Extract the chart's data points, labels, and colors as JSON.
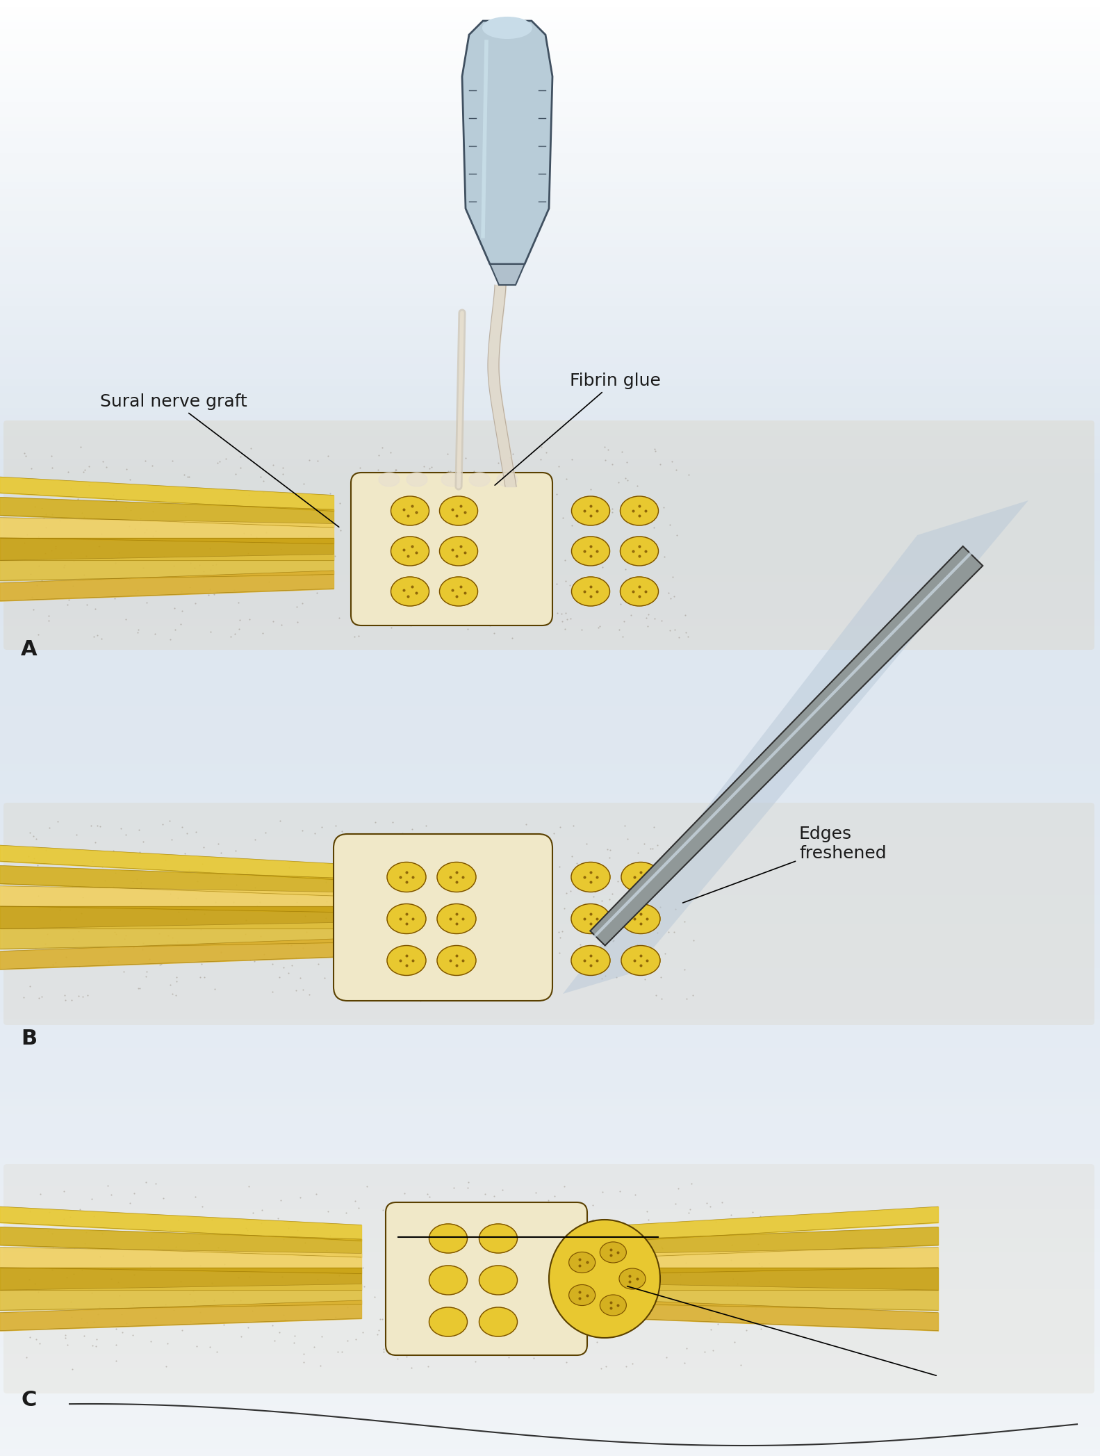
{
  "background_color": "#f0f4f8",
  "bg_gradient_top": "#ffffff",
  "bg_gradient_bottom": "#c8d8e8",
  "nerve_yellow": "#e8c830",
  "nerve_yellow_light": "#f0d860",
  "nerve_yellow_dark": "#c8a010",
  "nerve_cream": "#f5e8b0",
  "nerve_wrap_color": "#f0e0a0",
  "tissue_gray": "#8090a0",
  "tissue_light": "#b0c0d0",
  "glue_color": "#e8e0d0",
  "blade_color": "#909090",
  "blade_light": "#d0d8e0",
  "skin_dotted": "#c0b898",
  "label_A": "A",
  "label_B": "B",
  "label_C": "C",
  "label_sural": "Sural nerve graft",
  "label_fibrin": "Fibrin glue",
  "label_edges": "Edges\nfreshened",
  "line_color": "#1a1a1a",
  "text_color": "#1a1a1a",
  "label_fontsize": 18,
  "abc_fontsize": 22
}
